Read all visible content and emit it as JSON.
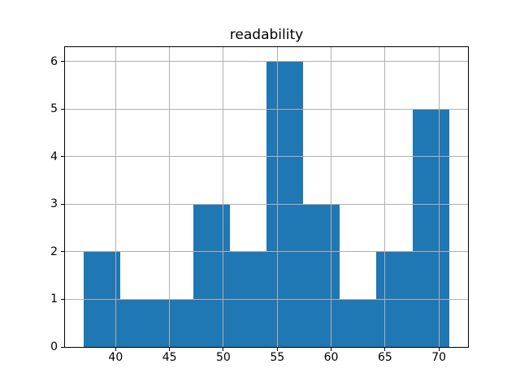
{
  "chart_data": {
    "type": "bar",
    "subtype": "histogram",
    "title": "readability",
    "xlabel": "",
    "ylabel": "",
    "bin_edges": [
      37.0,
      40.4,
      43.8,
      47.2,
      50.6,
      54.0,
      57.4,
      60.8,
      64.2,
      67.6,
      71.0
    ],
    "counts": [
      2,
      1,
      1,
      3,
      2,
      6,
      3,
      1,
      2,
      5
    ],
    "xticks": [
      40,
      45,
      50,
      55,
      60,
      65,
      70
    ],
    "yticks": [
      0,
      1,
      2,
      3,
      4,
      5,
      6
    ],
    "xlim": [
      35.3,
      72.7
    ],
    "ylim": [
      0,
      6.3
    ],
    "grid": true,
    "grid_position": "above-bars",
    "legend": false,
    "bar_color": "#1f77b4",
    "grid_color": "#b0b0b0",
    "axis_color": "#000000",
    "background_color": "#ffffff"
  }
}
